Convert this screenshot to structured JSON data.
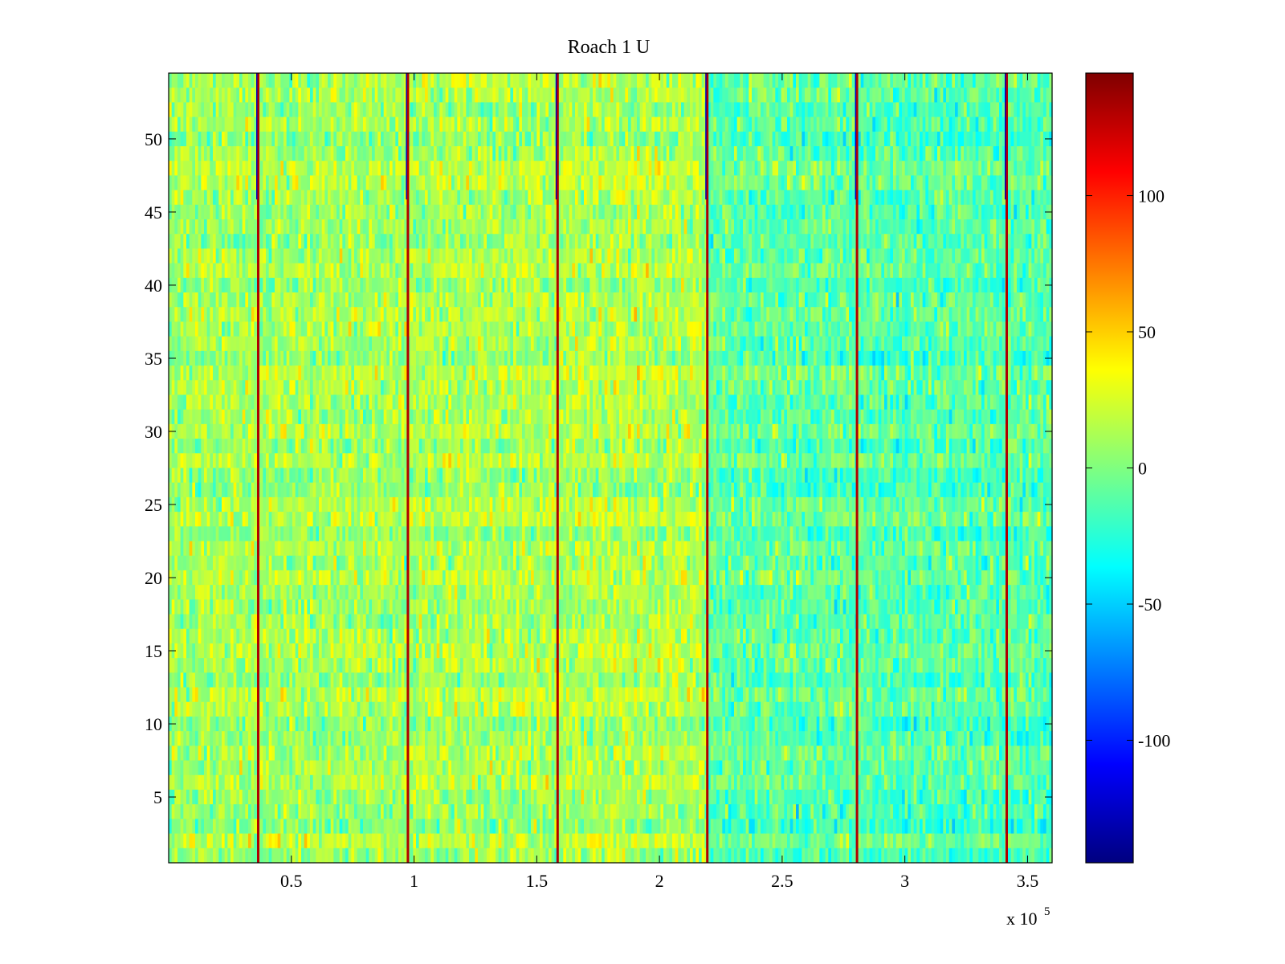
{
  "chart_data": {
    "type": "heatmap",
    "title": "Roach 1 U",
    "xlabel": "",
    "ylabel": "",
    "x_exponent_label": "x 10",
    "x_exponent": "5",
    "xlim": [
      0,
      3.6
    ],
    "ylim": [
      0.5,
      54.5
    ],
    "x_ticks": [
      0.5,
      1,
      1.5,
      2,
      2.5,
      3,
      3.5
    ],
    "x_tick_labels": [
      "0.5",
      "1",
      "1.5",
      "2",
      "2.5",
      "3",
      "3.5"
    ],
    "y_ticks": [
      5,
      10,
      15,
      20,
      25,
      30,
      35,
      40,
      45,
      50
    ],
    "y_tick_labels": [
      "5",
      "10",
      "15",
      "20",
      "25",
      "30",
      "35",
      "40",
      "45",
      "50"
    ],
    "rows": 54,
    "colorbar": {
      "colormap": "jet",
      "clim": [
        -145,
        145
      ],
      "ticks": [
        100,
        50,
        0,
        -50,
        -100
      ],
      "tick_labels": [
        "100",
        "50",
        "0",
        "-50",
        "-100"
      ],
      "placement": "right"
    },
    "spike_columns_x": [
      0.365,
      0.975,
      1.585,
      2.195,
      2.805,
      3.415
    ],
    "segments": [
      {
        "x_range": [
          0,
          0.365
        ],
        "mean_value": 10
      },
      {
        "x_range": [
          0.365,
          0.975
        ],
        "mean_value": 10
      },
      {
        "x_range": [
          0.975,
          1.585
        ],
        "mean_value": 12
      },
      {
        "x_range": [
          1.585,
          2.195
        ],
        "mean_value": 14
      },
      {
        "x_range": [
          2.195,
          2.805
        ],
        "mean_value": -10
      },
      {
        "x_range": [
          2.805,
          3.415
        ],
        "mean_value": -12
      },
      {
        "x_range": [
          3.415,
          3.6
        ],
        "mean_value": -12
      }
    ]
  }
}
